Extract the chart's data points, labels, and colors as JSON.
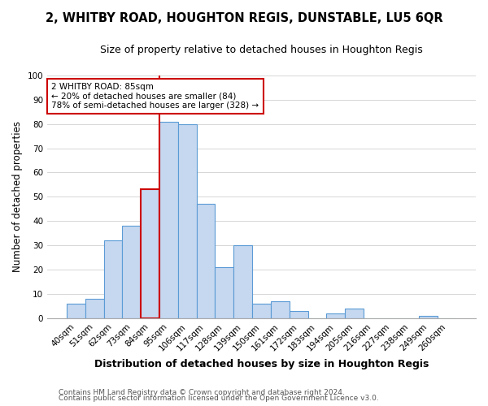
{
  "title": "2, WHITBY ROAD, HOUGHTON REGIS, DUNSTABLE, LU5 6QR",
  "subtitle": "Size of property relative to detached houses in Houghton Regis",
  "xlabel": "Distribution of detached houses by size in Houghton Regis",
  "ylabel": "Number of detached properties",
  "bar_labels": [
    "40sqm",
    "51sqm",
    "62sqm",
    "73sqm",
    "84sqm",
    "95sqm",
    "106sqm",
    "117sqm",
    "128sqm",
    "139sqm",
    "150sqm",
    "161sqm",
    "172sqm",
    "183sqm",
    "194sqm",
    "205sqm",
    "216sqm",
    "227sqm",
    "238sqm",
    "249sqm",
    "260sqm"
  ],
  "bar_values": [
    6,
    8,
    32,
    38,
    53,
    81,
    80,
    47,
    21,
    30,
    6,
    7,
    3,
    0,
    2,
    4,
    0,
    0,
    0,
    1,
    0
  ],
  "bar_color": "#c5d8f0",
  "bar_edge_color": "#5b9bd5",
  "highlight_bar_index": 4,
  "highlight_color": "#cc0000",
  "ylim": [
    0,
    100
  ],
  "annotation_title": "2 WHITBY ROAD: 85sqm",
  "annotation_line1": "← 20% of detached houses are smaller (84)",
  "annotation_line2": "78% of semi-detached houses are larger (328) →",
  "annotation_box_color": "#ffffff",
  "annotation_box_edge": "#cc0000",
  "footer_line1": "Contains HM Land Registry data © Crown copyright and database right 2024.",
  "footer_line2": "Contains public sector information licensed under the Open Government Licence v3.0.",
  "title_fontsize": 10.5,
  "subtitle_fontsize": 9,
  "xlabel_fontsize": 9,
  "ylabel_fontsize": 8.5,
  "tick_fontsize": 7.5,
  "footer_fontsize": 6.5
}
